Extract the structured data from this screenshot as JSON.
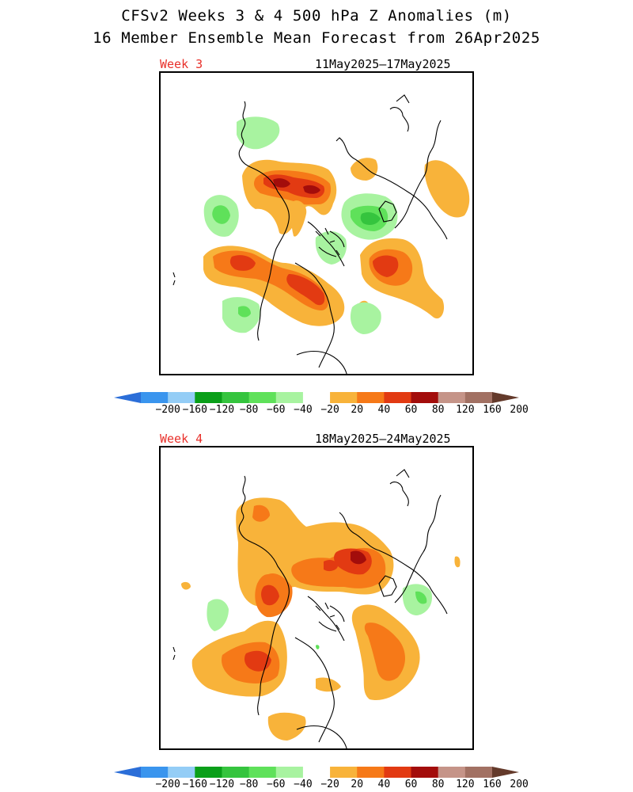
{
  "header": {
    "line1": "CFSv2 Weeks 3 & 4 500 hPa Z Anomalies (m)",
    "line2": "16 Member Ensemble Mean Forecast from 26Apr2025"
  },
  "panels": [
    {
      "week": "Week 3",
      "dates": "11May2025–17May2025"
    },
    {
      "week": "Week 4",
      "dates": "18May2025–24May2025"
    }
  ],
  "colorbar": {
    "labels": [
      "−200",
      "−160",
      "−120",
      "−80",
      "−60",
      "−40",
      "−20",
      "20",
      "40",
      "60",
      "80",
      "120",
      "160",
      "200"
    ],
    "colors": [
      "#2b6ed8",
      "#3a95ee",
      "#94cdf6",
      "#0a9f19",
      "#35c43e",
      "#5fe15a",
      "#a8f3a0",
      "#ffffff",
      "#f8b33a",
      "#f67918",
      "#e23a12",
      "#a30d0b",
      "#c59488",
      "#a27163",
      "#643a2b"
    ],
    "level_names": {
      "lt-200": "#2b6ed8",
      "neg": "#5fe15a",
      "pos": "#f8b33a"
    }
  },
  "map": {
    "shading": {
      "pos1": "#f8b33a",
      "pos2": "#f67918",
      "pos3": "#e23a12",
      "pos4": "#a30d0b",
      "neg1": "#a8f3a0",
      "neg2": "#5fe15a",
      "neg3": "#35c43e"
    }
  }
}
